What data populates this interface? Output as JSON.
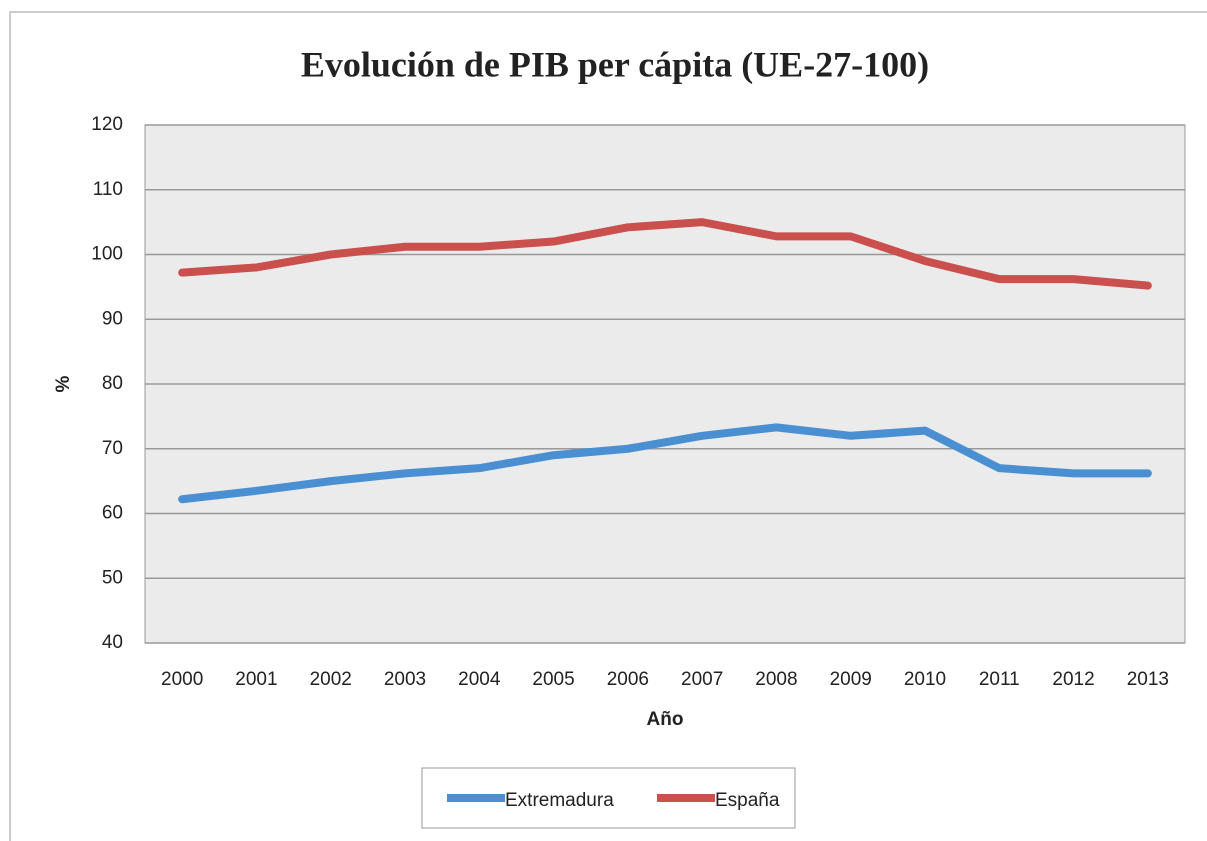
{
  "chart_data": {
    "type": "line",
    "title": "Evolución de PIB per cápita (UE-27-100)",
    "x_label": "Año",
    "y_label": "%",
    "categories": [
      "2000",
      "2001",
      "2002",
      "2003",
      "2004",
      "2005",
      "2006",
      "2007",
      "2008",
      "2009",
      "2010",
      "2011",
      "2012",
      "2013"
    ],
    "series": [
      {
        "name": "Extremadura",
        "color": "#4a8fd2",
        "values": [
          62.2,
          63.5,
          65,
          66.2,
          67,
          69,
          70,
          72,
          73.3,
          72,
          72.8,
          67,
          66.2,
          66.2
        ]
      },
      {
        "name": "España",
        "color": "#c9504d",
        "values": [
          97.2,
          98,
          100,
          101.2,
          101.2,
          102,
          104.2,
          105,
          102.8,
          102.8,
          99,
          96.2,
          96.2,
          95.2
        ]
      }
    ],
    "ylim": [
      40,
      120
    ],
    "yticks": [
      40,
      50,
      60,
      70,
      80,
      90,
      100,
      110,
      120
    ],
    "grid": true,
    "legend": "bottom"
  }
}
